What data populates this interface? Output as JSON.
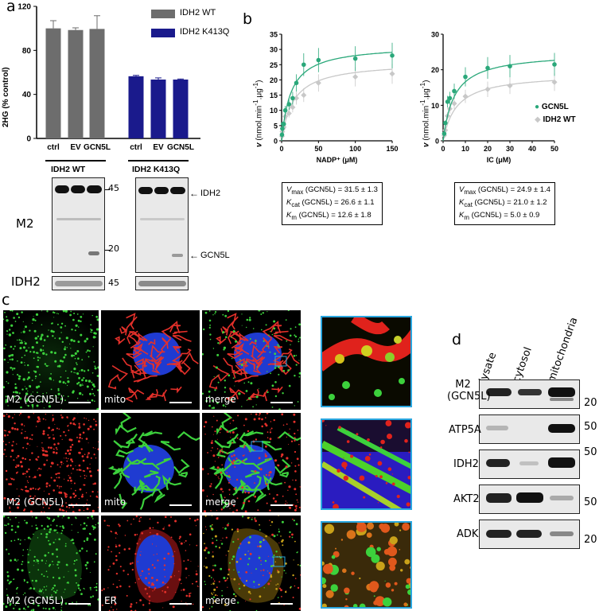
{
  "panels": {
    "a": "a",
    "b": "b",
    "c": "c",
    "d": "d"
  },
  "colors": {
    "wt": "#6d6d6d",
    "k413q": "#1a1a8c",
    "gcn5l": "#2aa87a",
    "idh2wt": "#c8c8c8",
    "zoom_border": "#2aa7e0"
  },
  "chart_data": [
    {
      "type": "bar",
      "ylabel": "2HG (% control)",
      "ylim": [
        0,
        120
      ],
      "yticks": [
        "0",
        "40",
        "80",
        "120"
      ],
      "categories": [
        "ctrl",
        "EV",
        "GCN5L",
        "ctrl",
        "EV",
        "GCN5L"
      ],
      "series": [
        {
          "name": "IDH2 WT",
          "values": [
            100,
            98.5,
            99.5,
            null,
            null,
            null
          ],
          "errors": [
            7,
            2,
            12,
            null,
            null,
            null
          ]
        },
        {
          "name": "IDH2 K413Q",
          "values": [
            null,
            null,
            null,
            56.5,
            53.5,
            53.5
          ],
          "errors": [
            null,
            null,
            null,
            0.8,
            1.5,
            0.5
          ]
        }
      ],
      "legend_position": "top-right"
    },
    {
      "type": "scatter",
      "xlabel": "NADP⁺ (μM)",
      "xlim": [
        0,
        150
      ],
      "xticks": [
        "0",
        "50",
        "100",
        "150"
      ],
      "ylim": [
        0,
        35
      ],
      "yticks": [
        "0",
        "5",
        "10",
        "15",
        "20",
        "25",
        "30",
        "35"
      ],
      "series": [
        {
          "name": "GCN5L",
          "x": [
            0.5,
            1,
            2,
            3,
            5,
            10,
            15,
            20,
            30,
            50,
            100,
            150
          ],
          "y": [
            2,
            4,
            5.5,
            5.5,
            10,
            12,
            14,
            19,
            25,
            26.5,
            27,
            28
          ],
          "fit": {
            "vmax": 31.5,
            "km": 12.6
          }
        },
        {
          "name": "IDH2 WT",
          "x": [
            0.5,
            1,
            2,
            3,
            5,
            10,
            15,
            20,
            30,
            50,
            100,
            150
          ],
          "y": [
            1.5,
            3,
            4,
            4.5,
            8,
            9,
            11,
            14,
            15,
            19,
            21,
            22
          ],
          "fit": {
            "vmax": 26,
            "km": 16
          }
        }
      ],
      "params": [
        {
          "sym": "V",
          "sub": "max",
          "label": " (GCN5L) = 31.5 ± 1.3"
        },
        {
          "sym": "K",
          "sub": "cat",
          "label": " (GCN5L) = 26.6 ± 1.1"
        },
        {
          "sym": "K",
          "sub": "m",
          "label": " (GCN5L) = 12.6 ± 1.8"
        }
      ]
    },
    {
      "type": "scatter",
      "xlabel": "IC (μM)",
      "xlim": [
        0,
        50
      ],
      "xticks": [
        "0",
        "10",
        "20",
        "30",
        "40",
        "50"
      ],
      "ylim": [
        0,
        30
      ],
      "yticks": [
        "0",
        "10",
        "20",
        "30"
      ],
      "series": [
        {
          "name": "GCN5L",
          "x": [
            0.5,
            1,
            2,
            3,
            5,
            10,
            20,
            30,
            50
          ],
          "y": [
            2,
            5,
            11,
            12,
            14,
            18,
            20.5,
            21,
            21.5
          ],
          "fit": {
            "vmax": 24.9,
            "km": 5.0
          }
        },
        {
          "name": "IDH2 WT",
          "x": [
            0.5,
            1,
            2,
            3,
            5,
            10,
            20,
            30,
            50
          ],
          "y": [
            1.5,
            3,
            7,
            9,
            10.5,
            12.5,
            14.5,
            15.5,
            16.5
          ],
          "fit": {
            "vmax": 19,
            "km": 6
          }
        }
      ],
      "params": [
        {
          "sym": "V",
          "sub": "max",
          "label": " (GCN5L) = 24.9 ± 1.4"
        },
        {
          "sym": "K",
          "sub": "cat",
          "label": " (GCN5L) = 21.0 ± 1.2"
        },
        {
          "sym": "K",
          "sub": "m",
          "label": " (GCN5L) = 5.0 ± 0.9"
        }
      ],
      "legend_position": "right"
    }
  ],
  "kinetics_ylabel": {
    "v": "v",
    "unit": " (nmol.min",
    "exp1": "-1",
    "mid": ".μg",
    "exp2": "-1",
    "close": ")"
  },
  "blots_a": {
    "group1": "IDH2 WT",
    "group2": "IDH2 K413Q",
    "row1": "M2",
    "row2": "IDH2",
    "mw45": "45",
    "mw20": "20",
    "mw45b": "45",
    "arrow1": "IDH2",
    "arrow2": "GCN5L"
  },
  "micro": {
    "row1": [
      "M2 (GCN5L)",
      "mito",
      "merge"
    ],
    "row2": [
      "M2 (GCN5L)",
      "mito",
      "merge"
    ],
    "row3": [
      "M2 (GCN5L)",
      "ER",
      "merge"
    ]
  },
  "blots_d": {
    "columns": [
      "lysate",
      "cytosol",
      "mitochondria"
    ],
    "rows": [
      {
        "label1": "M2",
        "label2": "(GCN5L)",
        "mw": "20"
      },
      {
        "label1": "ATP5A",
        "mw": "50"
      },
      {
        "label1": "IDH2",
        "mw": "50"
      },
      {
        "label1": "AKT2",
        "mw": "50"
      },
      {
        "label1": "ADK",
        "mw": "20"
      }
    ]
  }
}
